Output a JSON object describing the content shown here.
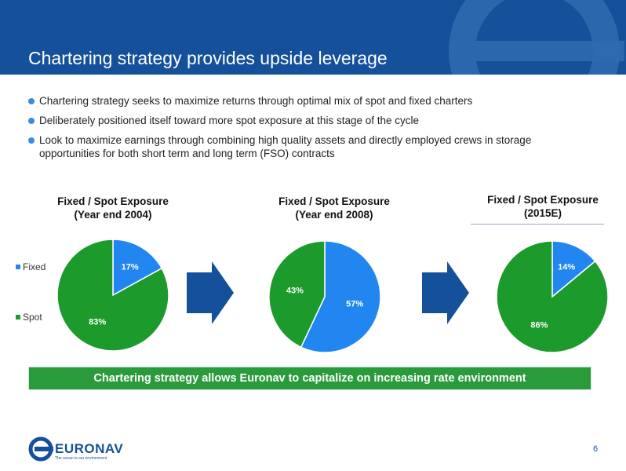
{
  "slide": {
    "title": "Chartering strategy provides upside leverage",
    "bullets": [
      "Chartering strategy seeks to maximize returns through optimal mix of spot and fixed charters",
      "Deliberately positioned itself toward more spot exposure at this stage of the cycle",
      "Look to maximize earnings through combining high quality assets and directly employed crews in storage opportunities  for both short term and long term (FSO) contracts"
    ],
    "banner": "Chartering strategy allows Euronav to capitalize on increasing rate environment",
    "page_number": "6",
    "brand": "EURONAV",
    "tagline": "The ocean is our environment",
    "colors": {
      "fixed": "#2286f0",
      "spot": "#1c9a2c",
      "header": "#15519a",
      "banner": "#2a9b3b"
    }
  },
  "legend": {
    "fixed": "Fixed",
    "spot": "Spot"
  },
  "chart_data": [
    {
      "type": "pie",
      "title": [
        "Fixed / Spot Exposure",
        "(Year end 2004)"
      ],
      "categories": [
        "Fixed",
        "Spot"
      ],
      "values": [
        17,
        83
      ],
      "labels": [
        "17%",
        "83%"
      ]
    },
    {
      "type": "pie",
      "title": [
        "Fixed / Spot Exposure",
        "(Year end 2008)"
      ],
      "categories": [
        "Fixed",
        "Spot"
      ],
      "values": [
        57,
        43
      ],
      "labels": [
        "57%",
        "43%"
      ]
    },
    {
      "type": "pie",
      "title": [
        "Fixed / Spot Exposure",
        "(2015E)"
      ],
      "categories": [
        "Fixed",
        "Spot"
      ],
      "values": [
        14,
        86
      ],
      "labels": [
        "14%",
        "86%"
      ]
    }
  ]
}
